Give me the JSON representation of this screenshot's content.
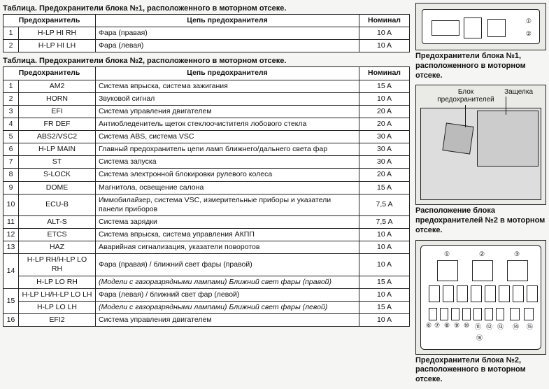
{
  "table1": {
    "title": "Таблица. Предохранители блока №1, расположенного в моторном отсеке.",
    "headers": {
      "fuse": "Предохранитель",
      "circuit": "Цепь предохранителя",
      "nominal": "Номинал"
    },
    "rows": [
      {
        "n": "1",
        "fuse": "H-LP HI RH",
        "circuit": "Фара (правая)",
        "nominal": "10 A"
      },
      {
        "n": "2",
        "fuse": "H-LP HI LH",
        "circuit": "Фара (левая)",
        "nominal": "10 A"
      }
    ]
  },
  "table2": {
    "title": "Таблица. Предохранители блока №2, расположенного в моторном отсеке.",
    "headers": {
      "fuse": "Предохранитель",
      "circuit": "Цепь предохранителя",
      "nominal": "Номинал"
    },
    "rows": [
      {
        "n": "1",
        "fuse": "AM2",
        "circuit": "Система впрыска, система зажигания",
        "nominal": "15 A"
      },
      {
        "n": "2",
        "fuse": "HORN",
        "circuit": "Звуковой сигнал",
        "nominal": "10 A"
      },
      {
        "n": "3",
        "fuse": "EFI",
        "circuit": "Система управления двигателем",
        "nominal": "20 A"
      },
      {
        "n": "4",
        "fuse": "FR DEF",
        "circuit": "Антиобледенитель щеток стеклоочистителя лобового стекла",
        "nominal": "20 A"
      },
      {
        "n": "5",
        "fuse": "ABS2/VSC2",
        "circuit": "Система ABS, система VSC",
        "nominal": "30 A"
      },
      {
        "n": "6",
        "fuse": "H-LP MAIN",
        "circuit": "Главный предохранитель цепи ламп ближнего/дальнего света фар",
        "nominal": "30 A"
      },
      {
        "n": "7",
        "fuse": "ST",
        "circuit": "Система запуска",
        "nominal": "30 A"
      },
      {
        "n": "8",
        "fuse": "S-LOCK",
        "circuit": "Система электронной блокировки рулевого колеса",
        "nominal": "20 A"
      },
      {
        "n": "9",
        "fuse": "DOME",
        "circuit": "Магнитола, освещение салона",
        "nominal": "15 A"
      },
      {
        "n": "10",
        "fuse": "ECU-B",
        "circuit": "Иммобилайзер, система VSC, измерительные приборы и указатели панели приборов",
        "nominal": "7,5 A"
      },
      {
        "n": "11",
        "fuse": "ALT-S",
        "circuit": "Система зарядки",
        "nominal": "7,5 A"
      },
      {
        "n": "12",
        "fuse": "ETCS",
        "circuit": "Система впрыска, система управления АКПП",
        "nominal": "10 A"
      },
      {
        "n": "13",
        "fuse": "HAZ",
        "circuit": "Аварийная сигнализация, указатели поворотов",
        "nominal": "10 A"
      },
      {
        "n": "14",
        "fuse": "H-LP RH/H-LP LO RH",
        "circuit": "Фара (правая) / ближний свет фары (правой)",
        "nominal": "10 A"
      },
      {
        "n": "14b",
        "fuse": "H-LP LO RH",
        "circuit": "(Модели с газоразрядными лампами) Ближний свет фары (правой)",
        "nominal": "15 A",
        "italic": true
      },
      {
        "n": "15",
        "fuse": "H-LP LH/H-LP LO LH",
        "circuit": "Фара (левая) / ближний свет фар (левой)",
        "nominal": "10 A"
      },
      {
        "n": "15b",
        "fuse": "H-LP LO LH",
        "circuit": "(Модели с газоразрядными лампами) Ближний свет фары (левой)",
        "nominal": "15 A",
        "italic": true
      },
      {
        "n": "16",
        "fuse": "EFI2",
        "circuit": "Система управления двигателем",
        "nominal": "10 A"
      }
    ]
  },
  "right": {
    "caption1": "Предохранители блока №1, расположенного в моторном отсеке.",
    "caption2": "Расположение блока предохранителей №2 в моторном отсеке.",
    "caption3": "Предохранители блока №2, расположенного в моторном отсеке.",
    "label_block": "Блок предохранителей",
    "label_latch": "Защелка",
    "nums_d1": [
      "①",
      "②"
    ],
    "nums_d3": [
      "①",
      "②",
      "③",
      "④",
      "⑤",
      "⑥",
      "⑦",
      "⑧",
      "⑨",
      "⑩",
      "⑪",
      "⑫",
      "⑬",
      "⑭",
      "⑮",
      "⑯"
    ]
  }
}
